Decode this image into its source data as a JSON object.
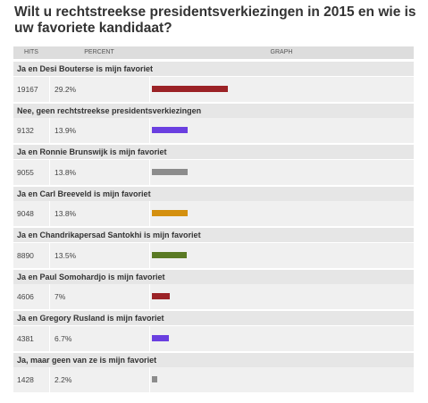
{
  "poll": {
    "title": "Wilt u rechtstreekse presidentsverkiezingen in 2015 en wie is uw favoriete kandidaat?",
    "headers": {
      "hits": "HITS",
      "percent": "PERCENT",
      "graph": "GRAPH"
    },
    "options": [
      {
        "label": "Ja en Desi Bouterse is mijn favoriet",
        "hits": "19167",
        "percent": "29.2%",
        "value": 29.2,
        "color": "#9b2226"
      },
      {
        "label": "Nee, geen rechtstreekse presidentsverkiezingen",
        "hits": "9132",
        "percent": "13.9%",
        "value": 13.9,
        "color": "#6a3fe0"
      },
      {
        "label": "Ja en Ronnie Brunswijk is mijn favoriet",
        "hits": "9055",
        "percent": "13.8%",
        "value": 13.8,
        "color": "#8c8c8c"
      },
      {
        "label": "Ja en Carl Breeveld is mijn favoriet",
        "hits": "9048",
        "percent": "13.8%",
        "value": 13.8,
        "color": "#d4900f"
      },
      {
        "label": "Ja en Chandrikapersad Santokhi is mijn favoriet",
        "hits": "8890",
        "percent": "13.5%",
        "value": 13.5,
        "color": "#5a7a24"
      },
      {
        "label": "Ja en Paul Somohardjo is mijn favoriet",
        "hits": "4606",
        "percent": "7%",
        "value": 7,
        "color": "#9b2226"
      },
      {
        "label": "Ja en Gregory Rusland is mijn favoriet",
        "hits": "4381",
        "percent": "6.7%",
        "value": 6.7,
        "color": "#6a3fe0"
      },
      {
        "label": "Ja, maar geen van ze is mijn favoriet",
        "hits": "1428",
        "percent": "2.2%",
        "value": 2.2,
        "color": "#8c8c8c"
      }
    ]
  }
}
